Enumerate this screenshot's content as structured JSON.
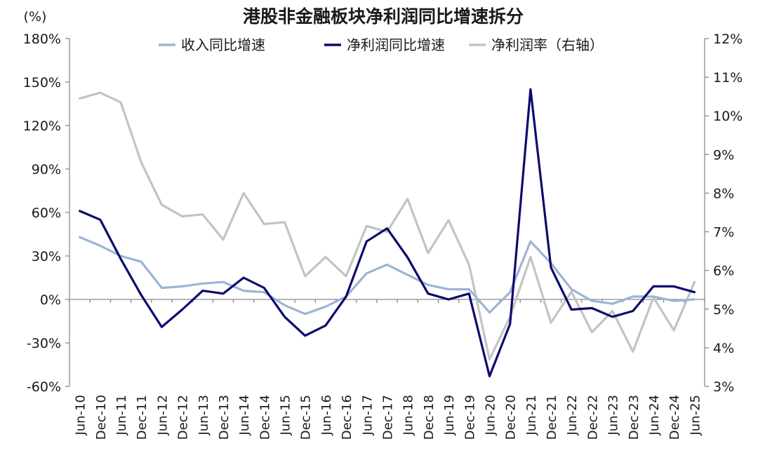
{
  "chart_data": {
    "type": "line",
    "title": "港股非金融板块净利润同比增速拆分",
    "y_unit_label": "(%)",
    "ylim": [
      -60,
      180
    ],
    "y2lim": [
      3,
      12
    ],
    "y_ticks": [
      "-60%",
      "-30%",
      "0%",
      "30%",
      "60%",
      "90%",
      "120%",
      "150%",
      "180%"
    ],
    "y2_ticks": [
      "3%",
      "4%",
      "5%",
      "6%",
      "7%",
      "8%",
      "9%",
      "10%",
      "11%",
      "12%"
    ],
    "grid": false,
    "legend_position": "top",
    "categories": [
      "Jun-10",
      "Dec-10",
      "Jun-11",
      "Dec-11",
      "Jun-12",
      "Dec-12",
      "Jun-13",
      "Dec-13",
      "Jun-14",
      "Dec-14",
      "Jun-15",
      "Dec-15",
      "Jun-16",
      "Dec-16",
      "Jun-17",
      "Dec-17",
      "Jun-18",
      "Dec-18",
      "Jun-19",
      "Dec-19",
      "Jun-20",
      "Dec-20",
      "Jun-21",
      "Dec-21",
      "Jun-22",
      "Dec-22",
      "Jun-23",
      "Dec-23",
      "Jun-24",
      "Dec-24",
      "Jun-25"
    ],
    "series": [
      {
        "name": "收入同比增速",
        "axis": "left",
        "color": "#9bb4d6",
        "values": [
          43,
          37,
          30,
          26,
          8,
          9,
          11,
          12,
          6,
          5,
          -4,
          -10,
          -5,
          2,
          18,
          24,
          17,
          10,
          7,
          7,
          -9,
          5,
          40,
          25,
          7,
          -1,
          -3,
          2,
          2,
          -1,
          0
        ]
      },
      {
        "name": "净利润同比增速",
        "axis": "left",
        "color": "#0b0b6e",
        "values": [
          61,
          55,
          28,
          3,
          -19,
          -7,
          6,
          4,
          15,
          8,
          -12,
          -25,
          -18,
          2,
          40,
          49,
          29,
          4,
          0,
          4,
          -53,
          -17,
          145,
          22,
          -7,
          -6,
          -12,
          -8,
          9,
          9,
          5
        ]
      },
      {
        "name": "净利润率（右轴）",
        "axis": "right",
        "color": "#c3c3c3",
        "values": [
          10.45,
          10.6,
          10.35,
          8.8,
          7.7,
          7.4,
          7.45,
          6.8,
          8.0,
          7.2,
          7.25,
          5.85,
          6.35,
          5.85,
          7.15,
          7.0,
          7.85,
          6.45,
          7.3,
          6.15,
          3.7,
          4.8,
          6.35,
          4.65,
          5.45,
          4.4,
          4.95,
          3.9,
          5.3,
          4.45,
          5.7
        ]
      }
    ]
  }
}
